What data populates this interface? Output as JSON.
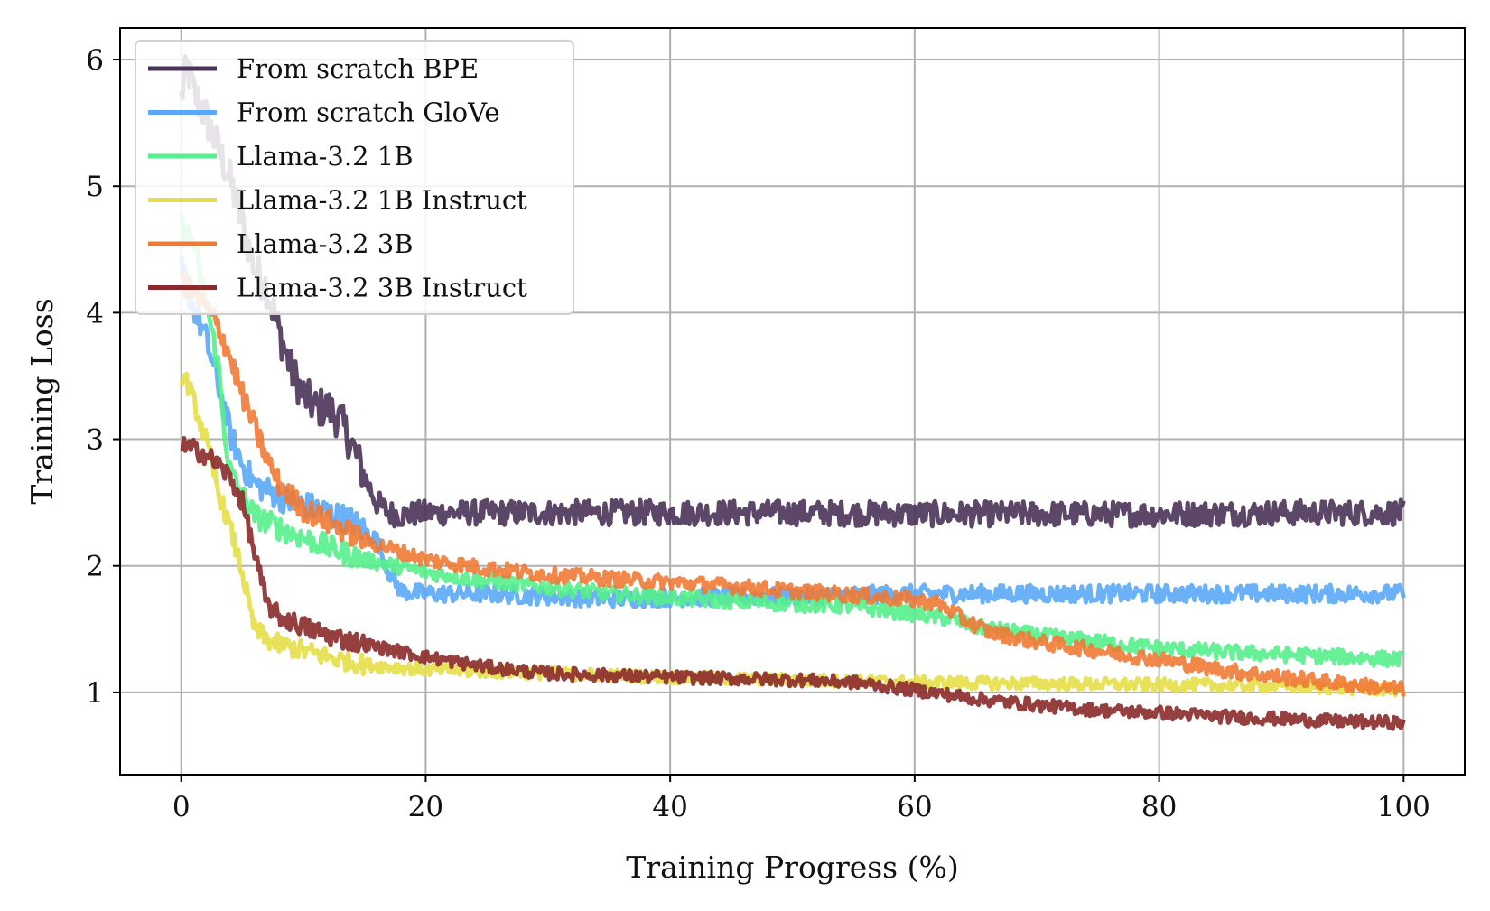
{
  "chart_data": {
    "type": "line",
    "title": "",
    "xlabel": "Training Progress (%)",
    "ylabel": "Training Loss",
    "xlim": [
      -5,
      105
    ],
    "ylim": [
      0.35,
      6.25
    ],
    "xticks": [
      0,
      20,
      40,
      60,
      80,
      100
    ],
    "yticks": [
      1,
      2,
      3,
      4,
      5,
      6
    ],
    "grid": true,
    "legend_position": "top-left",
    "series": [
      {
        "name": "From scratch BPE",
        "color": "#4a3358",
        "noise": 0.1,
        "points": [
          [
            0,
            5.7
          ],
          [
            0.5,
            5.95
          ],
          [
            1,
            5.75
          ],
          [
            2,
            5.55
          ],
          [
            3,
            5.3
          ],
          [
            4,
            5.05
          ],
          [
            5,
            4.7
          ],
          [
            6,
            4.35
          ],
          [
            7,
            4.2
          ],
          [
            8,
            3.85
          ],
          [
            9,
            3.55
          ],
          [
            10,
            3.35
          ],
          [
            11,
            3.25
          ],
          [
            12,
            3.25
          ],
          [
            13,
            3.15
          ],
          [
            14,
            2.95
          ],
          [
            15,
            2.7
          ],
          [
            16,
            2.5
          ],
          [
            17,
            2.42
          ],
          [
            18,
            2.4
          ],
          [
            20,
            2.42
          ],
          [
            25,
            2.42
          ],
          [
            30,
            2.42
          ],
          [
            40,
            2.42
          ],
          [
            50,
            2.42
          ],
          [
            60,
            2.41
          ],
          [
            70,
            2.41
          ],
          [
            80,
            2.41
          ],
          [
            90,
            2.42
          ],
          [
            100,
            2.42
          ]
        ]
      },
      {
        "name": "From scratch GloVe",
        "color": "#5aa8f7",
        "noise": 0.07,
        "points": [
          [
            0,
            4.35
          ],
          [
            1,
            4.05
          ],
          [
            2,
            3.8
          ],
          [
            3,
            3.45
          ],
          [
            4,
            3.05
          ],
          [
            5,
            2.8
          ],
          [
            6,
            2.65
          ],
          [
            7,
            2.6
          ],
          [
            8,
            2.55
          ],
          [
            9,
            2.5
          ],
          [
            10,
            2.48
          ],
          [
            12,
            2.42
          ],
          [
            14,
            2.35
          ],
          [
            16,
            2.2
          ],
          [
            17,
            1.95
          ],
          [
            18,
            1.8
          ],
          [
            20,
            1.78
          ],
          [
            25,
            1.78
          ],
          [
            30,
            1.76
          ],
          [
            35,
            1.74
          ],
          [
            40,
            1.75
          ],
          [
            50,
            1.76
          ],
          [
            60,
            1.78
          ],
          [
            70,
            1.78
          ],
          [
            80,
            1.78
          ],
          [
            90,
            1.78
          ],
          [
            100,
            1.78
          ]
        ]
      },
      {
        "name": "Llama-3.2 1B",
        "color": "#55f08c",
        "noise": 0.06,
        "points": [
          [
            0,
            4.7
          ],
          [
            1,
            4.55
          ],
          [
            2,
            4.1
          ],
          [
            3,
            3.6
          ],
          [
            3.5,
            3.1
          ],
          [
            4,
            2.75
          ],
          [
            5,
            2.55
          ],
          [
            6,
            2.4
          ],
          [
            8,
            2.3
          ],
          [
            10,
            2.22
          ],
          [
            12,
            2.15
          ],
          [
            15,
            2.05
          ],
          [
            20,
            1.95
          ],
          [
            25,
            1.88
          ],
          [
            30,
            1.83
          ],
          [
            35,
            1.78
          ],
          [
            40,
            1.75
          ],
          [
            45,
            1.72
          ],
          [
            50,
            1.7
          ],
          [
            55,
            1.68
          ],
          [
            60,
            1.62
          ],
          [
            63,
            1.58
          ],
          [
            65,
            1.52
          ],
          [
            70,
            1.45
          ],
          [
            75,
            1.4
          ],
          [
            80,
            1.35
          ],
          [
            85,
            1.32
          ],
          [
            90,
            1.3
          ],
          [
            95,
            1.28
          ],
          [
            100,
            1.26
          ]
        ]
      },
      {
        "name": "Llama-3.2 1B Instruct",
        "color": "#e6de48",
        "noise": 0.05,
        "points": [
          [
            0,
            3.5
          ],
          [
            0.5,
            3.45
          ],
          [
            1,
            3.3
          ],
          [
            2,
            3.0
          ],
          [
            3,
            2.6
          ],
          [
            4,
            2.3
          ],
          [
            5,
            1.95
          ],
          [
            5.5,
            1.7
          ],
          [
            6,
            1.5
          ],
          [
            7,
            1.42
          ],
          [
            8,
            1.38
          ],
          [
            10,
            1.33
          ],
          [
            12,
            1.28
          ],
          [
            15,
            1.22
          ],
          [
            20,
            1.18
          ],
          [
            30,
            1.15
          ],
          [
            40,
            1.12
          ],
          [
            50,
            1.1
          ],
          [
            60,
            1.08
          ],
          [
            70,
            1.07
          ],
          [
            80,
            1.06
          ],
          [
            90,
            1.05
          ],
          [
            100,
            1.02
          ]
        ]
      },
      {
        "name": "Llama-3.2 3B",
        "color": "#f07a35",
        "noise": 0.06,
        "points": [
          [
            0,
            4.25
          ],
          [
            1,
            4.15
          ],
          [
            2,
            4.05
          ],
          [
            3,
            3.9
          ],
          [
            4,
            3.65
          ],
          [
            5,
            3.35
          ],
          [
            6,
            3.1
          ],
          [
            7,
            2.85
          ],
          [
            8,
            2.65
          ],
          [
            10,
            2.45
          ],
          [
            12,
            2.35
          ],
          [
            15,
            2.2
          ],
          [
            20,
            2.05
          ],
          [
            25,
            1.98
          ],
          [
            30,
            1.93
          ],
          [
            35,
            1.9
          ],
          [
            40,
            1.87
          ],
          [
            45,
            1.84
          ],
          [
            50,
            1.8
          ],
          [
            55,
            1.77
          ],
          [
            60,
            1.73
          ],
          [
            62,
            1.7
          ],
          [
            64,
            1.58
          ],
          [
            66,
            1.48
          ],
          [
            70,
            1.4
          ],
          [
            75,
            1.33
          ],
          [
            80,
            1.26
          ],
          [
            85,
            1.18
          ],
          [
            90,
            1.12
          ],
          [
            95,
            1.07
          ],
          [
            100,
            1.02
          ]
        ]
      },
      {
        "name": "Llama-3.2 3B Instruct",
        "color": "#8b2a2a",
        "noise": 0.05,
        "points": [
          [
            0,
            2.95
          ],
          [
            1,
            2.92
          ],
          [
            2,
            2.88
          ],
          [
            3,
            2.8
          ],
          [
            4,
            2.7
          ],
          [
            5,
            2.5
          ],
          [
            6,
            2.1
          ],
          [
            7,
            1.7
          ],
          [
            8,
            1.6
          ],
          [
            10,
            1.52
          ],
          [
            12,
            1.45
          ],
          [
            15,
            1.38
          ],
          [
            20,
            1.28
          ],
          [
            25,
            1.2
          ],
          [
            30,
            1.15
          ],
          [
            40,
            1.12
          ],
          [
            50,
            1.1
          ],
          [
            55,
            1.08
          ],
          [
            60,
            1.02
          ],
          [
            65,
            0.95
          ],
          [
            70,
            0.9
          ],
          [
            75,
            0.86
          ],
          [
            80,
            0.84
          ],
          [
            85,
            0.81
          ],
          [
            90,
            0.79
          ],
          [
            95,
            0.77
          ],
          [
            100,
            0.76
          ]
        ]
      }
    ]
  }
}
